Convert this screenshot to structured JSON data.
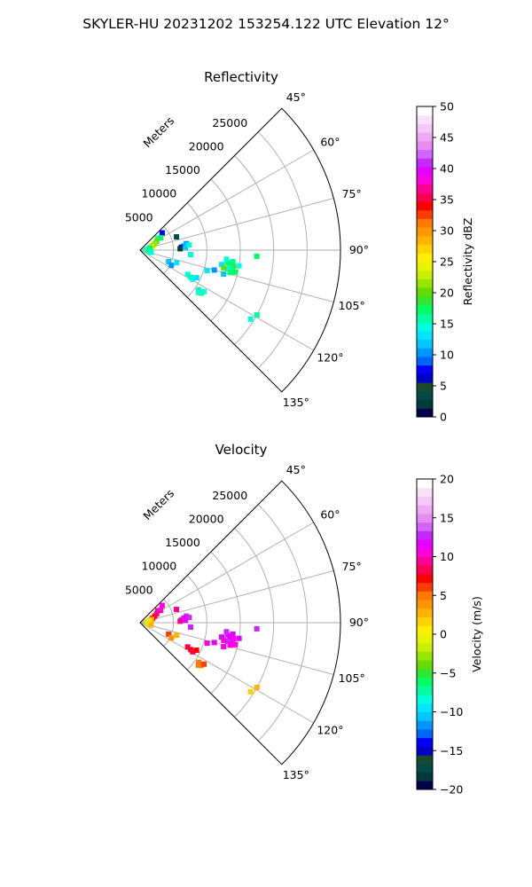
{
  "figure": {
    "title": "SKYLER-HU  20231202  153254.122 UTC Elevation 12°"
  },
  "chart_data": [
    {
      "type": "scatter",
      "projection": "polar-sector",
      "title": "Reflectivity",
      "range_label": "Meters",
      "azimuth_range_deg": [
        45,
        135
      ],
      "azimuth_ticks": [
        "45°",
        "60°",
        "75°",
        "90°",
        "105°",
        "120°",
        "135°"
      ],
      "azimuth_tick_values": [
        45,
        60,
        75,
        90,
        105,
        120,
        135
      ],
      "range_ticks": [
        "5000",
        "10000",
        "15000",
        "20000",
        "25000"
      ],
      "range_tick_values": [
        5000,
        10000,
        15000,
        20000,
        25000
      ],
      "range_max": 30000,
      "grid": true,
      "colorbar": {
        "label": "Reflectivity dBZ",
        "ticks": [
          "0",
          "5",
          "10",
          "15",
          "20",
          "25",
          "30",
          "35",
          "40",
          "45",
          "50"
        ],
        "tick_values": [
          0,
          5,
          10,
          15,
          20,
          25,
          30,
          35,
          40,
          45,
          50
        ],
        "range": [
          0,
          50
        ],
        "colors": [
          "#00004a",
          "#003a3a",
          "#004a4a",
          "#1a4a2e",
          "#0000c8",
          "#0000ff",
          "#0064ff",
          "#0096ff",
          "#00c8ff",
          "#00e6ff",
          "#00ffdc",
          "#00ffa0",
          "#00ff64",
          "#32e632",
          "#64dc00",
          "#96e600",
          "#c8f000",
          "#e6f500",
          "#fff000",
          "#ffd200",
          "#ffb400",
          "#ff9600",
          "#ff7800",
          "#ff3c00",
          "#ff0000",
          "#ff0050",
          "#ff0096",
          "#ff00dc",
          "#e600ff",
          "#c828ff",
          "#d264ff",
          "#e68cf0",
          "#f0aaf5",
          "#f5c8fa",
          "#fae1fa",
          "#ffffff"
        ]
      },
      "series": [
        {
          "values": [
            {
              "az": 52,
              "r": 4200,
              "v": 8
            },
            {
              "az": 56,
              "r": 3200,
              "v": 16
            },
            {
              "az": 59,
              "r": 3600,
              "v": 18
            },
            {
              "az": 62,
              "r": 2800,
              "v": 20
            },
            {
              "az": 66,
              "r": 2400,
              "v": 21
            },
            {
              "az": 70,
              "r": 2000,
              "v": 22
            },
            {
              "az": 74,
              "r": 1800,
              "v": 23
            },
            {
              "az": 78,
              "r": 1500,
              "v": 19
            },
            {
              "az": 82,
              "r": 1300,
              "v": 17
            },
            {
              "az": 86,
              "r": 1100,
              "v": 15
            },
            {
              "az": 90,
              "r": 1000,
              "v": 14
            },
            {
              "az": 94,
              "r": 1300,
              "v": 18
            },
            {
              "az": 98,
              "r": 1500,
              "v": 16
            },
            {
              "az": 102,
              "r": 1700,
              "v": 14
            },
            {
              "az": 82,
              "r": 7000,
              "v": 10
            },
            {
              "az": 84,
              "r": 6600,
              "v": 12
            },
            {
              "az": 86,
              "r": 6200,
              "v": 8
            },
            {
              "az": 88,
              "r": 6000,
              "v": 2
            },
            {
              "az": 87,
              "r": 6800,
              "v": 12
            },
            {
              "az": 84,
              "r": 7400,
              "v": 14
            },
            {
              "az": 95,
              "r": 7600,
              "v": 14
            },
            {
              "az": 97,
              "r": 14000,
              "v": 16
            },
            {
              "az": 98,
              "r": 13200,
              "v": 18
            },
            {
              "az": 99,
              "r": 13600,
              "v": 17
            },
            {
              "az": 100,
              "r": 14200,
              "v": 19
            },
            {
              "az": 101,
              "r": 13800,
              "v": 16
            },
            {
              "az": 102,
              "r": 13400,
              "v": 15
            },
            {
              "az": 100,
              "r": 12400,
              "v": 13
            },
            {
              "az": 102,
              "r": 12800,
              "v": 20
            },
            {
              "az": 103,
              "r": 14600,
              "v": 18
            },
            {
              "az": 99,
              "r": 15000,
              "v": 14
            },
            {
              "az": 96,
              "r": 13000,
              "v": 15
            },
            {
              "az": 104,
              "r": 13900,
              "v": 17
            },
            {
              "az": 106,
              "r": 13000,
              "v": 12
            },
            {
              "az": 105,
              "r": 11500,
              "v": 11
            },
            {
              "az": 107,
              "r": 10500,
              "v": 13
            },
            {
              "az": 93,
              "r": 17500,
              "v": 18
            },
            {
              "az": 119,
              "r": 20000,
              "v": 16
            },
            {
              "az": 122,
              "r": 19500,
              "v": 14
            },
            {
              "az": 117,
              "r": 8000,
              "v": 15
            },
            {
              "az": 118,
              "r": 8600,
              "v": 16
            },
            {
              "az": 119,
              "r": 9000,
              "v": 14
            },
            {
              "az": 116,
              "r": 9400,
              "v": 13
            },
            {
              "az": 124,
              "r": 10600,
              "v": 16
            },
            {
              "az": 125,
              "r": 11200,
              "v": 17
            },
            {
              "az": 126,
              "r": 10800,
              "v": 15
            },
            {
              "az": 123,
              "r": 11400,
              "v": 14
            },
            {
              "az": 112,
              "r": 4600,
              "v": 12
            },
            {
              "az": 116,
              "r": 5200,
              "v": 10
            },
            {
              "az": 109,
              "r": 5800,
              "v": 13
            },
            {
              "az": 70,
              "r": 5800,
              "v": 4
            }
          ]
        }
      ]
    },
    {
      "type": "scatter",
      "projection": "polar-sector",
      "title": "Velocity",
      "range_label": "Meters",
      "azimuth_range_deg": [
        45,
        135
      ],
      "azimuth_ticks": [
        "45°",
        "60°",
        "75°",
        "90°",
        "105°",
        "120°",
        "135°"
      ],
      "azimuth_tick_values": [
        45,
        60,
        75,
        90,
        105,
        120,
        135
      ],
      "range_ticks": [
        "5000",
        "10000",
        "15000",
        "20000",
        "25000"
      ],
      "range_tick_values": [
        5000,
        10000,
        15000,
        20000,
        25000
      ],
      "range_max": 30000,
      "grid": true,
      "colorbar": {
        "label": "Velocity (m/s)",
        "ticks": [
          "−20",
          "−15",
          "−10",
          "−5",
          "0",
          "5",
          "10",
          "15",
          "20"
        ],
        "tick_values": [
          -20,
          -15,
          -10,
          -5,
          0,
          5,
          10,
          15,
          20
        ],
        "range": [
          -20,
          20
        ],
        "colors": [
          "#00004a",
          "#003a3a",
          "#004a4a",
          "#1a4a2e",
          "#0000c8",
          "#0000ff",
          "#0064ff",
          "#0096ff",
          "#00c8ff",
          "#00e6ff",
          "#00ffdc",
          "#00ffa0",
          "#00ff64",
          "#32e632",
          "#64dc00",
          "#96e600",
          "#c8f000",
          "#e6f500",
          "#fff000",
          "#ffd200",
          "#ffb400",
          "#ff9600",
          "#ff7800",
          "#ff3c00",
          "#ff0000",
          "#ff0050",
          "#ff0096",
          "#ff00dc",
          "#e600ff",
          "#c828ff",
          "#d264ff",
          "#e68cf0",
          "#f0aaf5",
          "#f5c8fa",
          "#fae1fa",
          "#ffffff"
        ]
      },
      "series": [
        {
          "values": [
            {
              "az": 52,
              "r": 4200,
              "v": 10
            },
            {
              "az": 56,
              "r": 3200,
              "v": 9
            },
            {
              "az": 59,
              "r": 3600,
              "v": 10
            },
            {
              "az": 62,
              "r": 2800,
              "v": 9
            },
            {
              "az": 66,
              "r": 2400,
              "v": 8
            },
            {
              "az": 70,
              "r": 2000,
              "v": 7
            },
            {
              "az": 74,
              "r": 1800,
              "v": 4
            },
            {
              "az": 78,
              "r": 1500,
              "v": 2
            },
            {
              "az": 82,
              "r": 1300,
              "v": 0
            },
            {
              "az": 86,
              "r": 1100,
              "v": -1
            },
            {
              "az": 90,
              "r": 1000,
              "v": -2
            },
            {
              "az": 94,
              "r": 1300,
              "v": 1
            },
            {
              "az": 98,
              "r": 1500,
              "v": 2
            },
            {
              "az": 102,
              "r": 1700,
              "v": 3
            },
            {
              "az": 82,
              "r": 7000,
              "v": 13
            },
            {
              "az": 84,
              "r": 6600,
              "v": 12
            },
            {
              "az": 86,
              "r": 6200,
              "v": 13
            },
            {
              "az": 88,
              "r": 6000,
              "v": 9
            },
            {
              "az": 87,
              "r": 6800,
              "v": 12
            },
            {
              "az": 84,
              "r": 7400,
              "v": 13
            },
            {
              "az": 95,
              "r": 7600,
              "v": 13
            },
            {
              "az": 97,
              "r": 14000,
              "v": 12
            },
            {
              "az": 98,
              "r": 13200,
              "v": 13
            },
            {
              "az": 99,
              "r": 13600,
              "v": 12
            },
            {
              "az": 100,
              "r": 14200,
              "v": 11
            },
            {
              "az": 101,
              "r": 13800,
              "v": 12
            },
            {
              "az": 102,
              "r": 13400,
              "v": 13
            },
            {
              "az": 100,
              "r": 12400,
              "v": 12
            },
            {
              "az": 102,
              "r": 12800,
              "v": 11
            },
            {
              "az": 103,
              "r": 14600,
              "v": 10
            },
            {
              "az": 99,
              "r": 15000,
              "v": 12
            },
            {
              "az": 96,
              "r": 13000,
              "v": 13
            },
            {
              "az": 104,
              "r": 13900,
              "v": 11
            },
            {
              "az": 106,
              "r": 13000,
              "v": 10
            },
            {
              "az": 105,
              "r": 11500,
              "v": 12
            },
            {
              "az": 107,
              "r": 10500,
              "v": 11
            },
            {
              "az": 93,
              "r": 17500,
              "v": 13
            },
            {
              "az": 119,
              "r": 20000,
              "v": 3
            },
            {
              "az": 122,
              "r": 19500,
              "v": 2
            },
            {
              "az": 117,
              "r": 8000,
              "v": 8
            },
            {
              "az": 118,
              "r": 8600,
              "v": 7
            },
            {
              "az": 119,
              "r": 9000,
              "v": 8
            },
            {
              "az": 116,
              "r": 9400,
              "v": 7
            },
            {
              "az": 124,
              "r": 10600,
              "v": 5
            },
            {
              "az": 125,
              "r": 11200,
              "v": 4
            },
            {
              "az": 126,
              "r": 10800,
              "v": 5
            },
            {
              "az": 123,
              "r": 11400,
              "v": 6
            },
            {
              "az": 112,
              "r": 4600,
              "v": 6
            },
            {
              "az": 116,
              "r": 5200,
              "v": 4
            },
            {
              "az": 109,
              "r": 5800,
              "v": 3
            },
            {
              "az": 70,
              "r": 5800,
              "v": 9
            }
          ]
        }
      ]
    }
  ]
}
